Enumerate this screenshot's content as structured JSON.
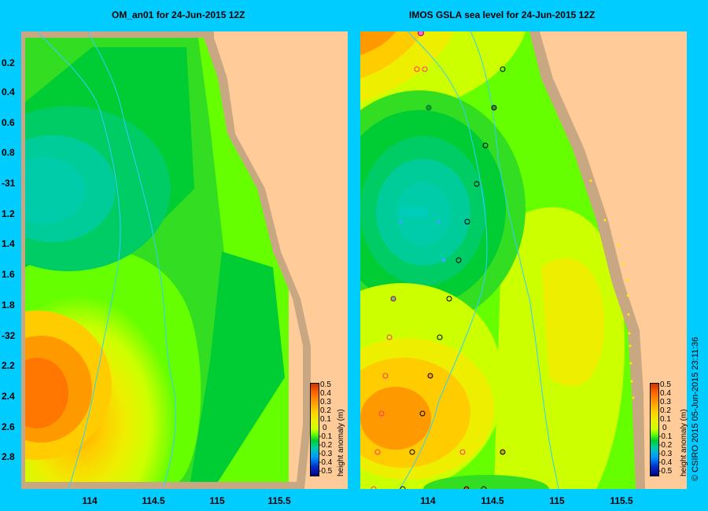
{
  "left_panel": {
    "title": "OM_an01  for 24-Jun-2015 12Z"
  },
  "right_panel": {
    "title": "IMOS GSLA sea level   for 24-Jun-2015 12Z"
  },
  "y_axis_labels": [
    "0.2",
    "0.4",
    "0.6",
    "0.8",
    "-31",
    "1.2",
    "1.4",
    "1.6",
    "1.8",
    "-32",
    "2.2",
    "2.4",
    "2.6",
    "2.8"
  ],
  "x_axis_labels": [
    "114",
    "114.5",
    "115",
    "115.5"
  ],
  "colorbar": {
    "title": "height anomaly (m)",
    "ticks": [
      "0.5",
      "0.4",
      "0.3",
      "0.2",
      "0.1",
      "0",
      "-0.1",
      "-0.2",
      "-0.3",
      "-0.4",
      "-0.5"
    ],
    "colors": [
      "#cc3300",
      "#ff6600",
      "#ff9900",
      "#ffcc00",
      "#eeee00",
      "#ccff00",
      "#66ff00",
      "#00cc33",
      "#00ccaa",
      "#0099ff",
      "#0033cc",
      "#000080"
    ]
  },
  "copyright": "© CSIRO 2015   05-Jun-2015 23:11:36",
  "colors": {
    "background": "#00ccff",
    "land": "#ffcc99",
    "coast": "#c8a882",
    "contour": "#33ccff"
  }
}
